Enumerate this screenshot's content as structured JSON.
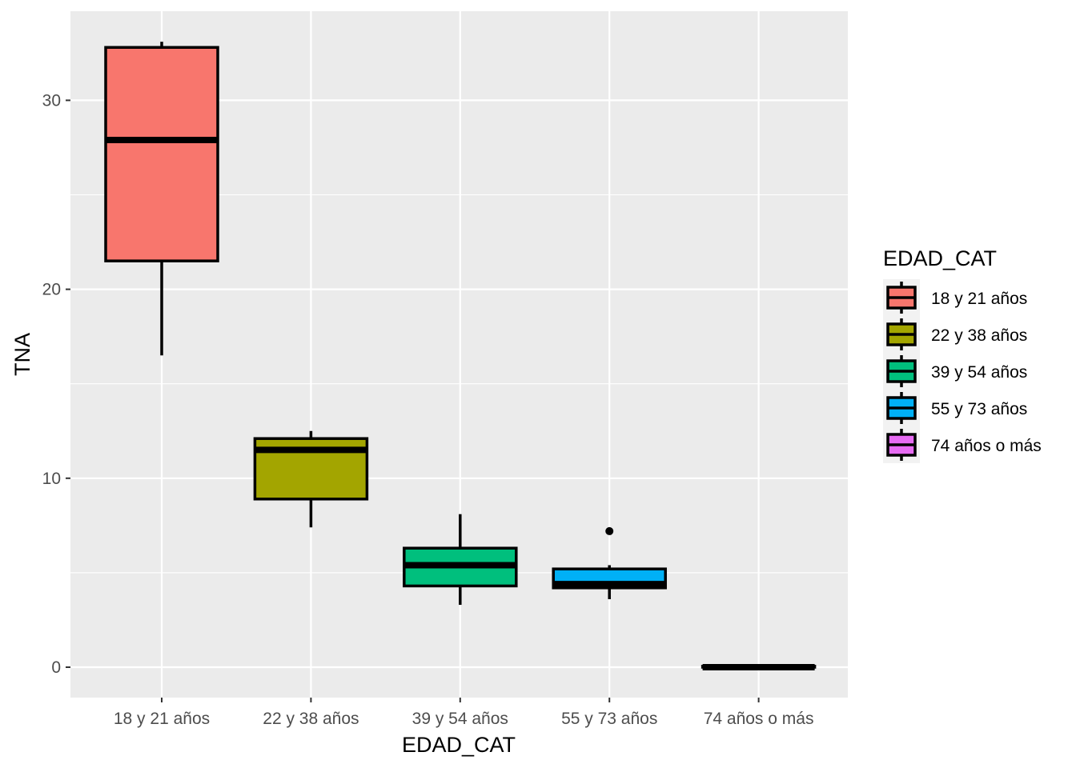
{
  "chart_data": {
    "type": "box",
    "xlabel": "EDAD_CAT",
    "ylabel": "TNA",
    "ylim": [
      -1.5,
      33.8
    ],
    "yticks": [
      0,
      10,
      20,
      30
    ],
    "grid": true,
    "legend": {
      "title": "EDAD_CAT",
      "placement": "right"
    },
    "categories": [
      "18 y 21 años",
      "22 y 38 años",
      "39 y 54 años",
      "55 y 73 años",
      "74 años o más"
    ],
    "boxes": [
      {
        "category": "18 y 21 años",
        "color": "#F8766D",
        "whisker_low": 16.5,
        "q1": 21.5,
        "median": 27.9,
        "q3": 32.8,
        "whisker_high": 33.1,
        "outliers": []
      },
      {
        "category": "22 y 38 años",
        "color": "#A3A500",
        "whisker_low": 7.4,
        "q1": 8.9,
        "median": 11.5,
        "q3": 12.1,
        "whisker_high": 12.5,
        "outliers": []
      },
      {
        "category": "39 y 54 años",
        "color": "#00BF7D",
        "whisker_low": 3.3,
        "q1": 4.3,
        "median": 5.4,
        "q3": 6.3,
        "whisker_high": 8.1,
        "outliers": []
      },
      {
        "category": "55 y 73 años",
        "color": "#00B0F6",
        "whisker_low": 3.6,
        "q1": 4.2,
        "median": 4.4,
        "q3": 5.2,
        "whisker_high": 5.4,
        "outliers": [
          7.2
        ]
      },
      {
        "category": "74 años o más",
        "color": "#E76BF3",
        "whisker_low": 0.0,
        "q1": 0.0,
        "median": 0.0,
        "q3": 0.05,
        "whisker_high": 0.1,
        "outliers": []
      }
    ]
  }
}
